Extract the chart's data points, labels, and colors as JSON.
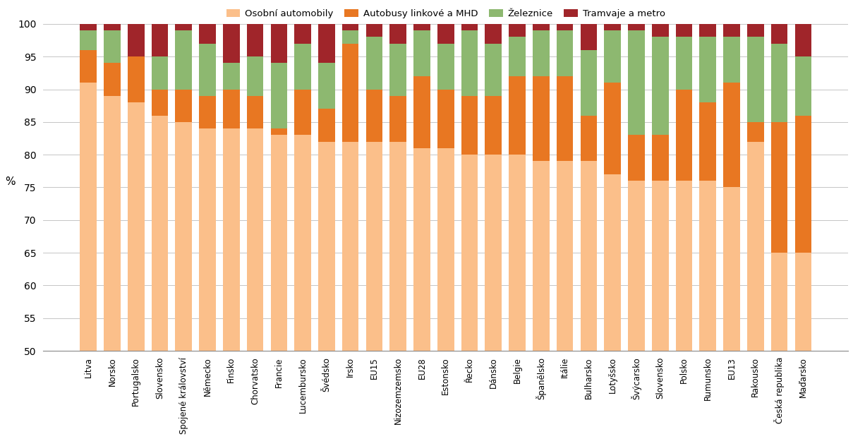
{
  "categories_display": [
    "Litva",
    "Norsko",
    "Portugalsko",
    "Slovensko",
    "Spojené království",
    "Německo",
    "Finsko",
    "Chorvatsko",
    "Francie",
    "Lucembursko",
    "Švédsko",
    "Irsko",
    "EU15",
    "Nizozemzemsko",
    "EU28",
    "Estonsko",
    "Řecko",
    "Dánsko",
    "Belgie",
    "Španělsko",
    "Itálie",
    "Bulharsko",
    "Lotyšsko",
    "Švýcarsko",
    "Slovensko",
    "Polsko",
    "Rumunsko",
    "EU13",
    "Rakousko",
    "Česká republika",
    "Maďarsko"
  ],
  "osobni": [
    91,
    89,
    88,
    86,
    85,
    84,
    84,
    84,
    83,
    83,
    82,
    82,
    82,
    82,
    81,
    81,
    80,
    80,
    80,
    79,
    79,
    79,
    77,
    76,
    76,
    76,
    76,
    75,
    82,
    65,
    65
  ],
  "autobusy": [
    5,
    5,
    7,
    4,
    5,
    5,
    6,
    5,
    1,
    7,
    5,
    15,
    8,
    7,
    11,
    9,
    9,
    9,
    12,
    13,
    13,
    7,
    14,
    7,
    7,
    14,
    12,
    16,
    3,
    20,
    21
  ],
  "zeleznice": [
    3,
    5,
    0,
    5,
    9,
    8,
    4,
    6,
    10,
    7,
    7,
    2,
    8,
    8,
    7,
    7,
    10,
    8,
    6,
    7,
    7,
    10,
    8,
    16,
    15,
    8,
    10,
    7,
    13,
    12,
    9
  ],
  "tramvaje": [
    1,
    1,
    5,
    5,
    1,
    3,
    6,
    5,
    6,
    3,
    6,
    1,
    2,
    3,
    1,
    3,
    1,
    3,
    2,
    1,
    1,
    4,
    1,
    1,
    2,
    2,
    2,
    2,
    2,
    3,
    5
  ],
  "color_osobni": "#FBBF8A",
  "color_autobusy": "#E87722",
  "color_zeleznice": "#8DB870",
  "color_tramvaje": "#A0252A",
  "ylabel": "%",
  "ylim": [
    50,
    100
  ],
  "yticks": [
    50,
    55,
    60,
    65,
    70,
    75,
    80,
    85,
    90,
    95,
    100
  ],
  "legend_labels": [
    "Osobní automobily",
    "Autobusy linkové a MHD",
    "Železnice",
    "Tramvaje a metro"
  ],
  "figsize": [
    12.09,
    6.22
  ],
  "dpi": 100
}
